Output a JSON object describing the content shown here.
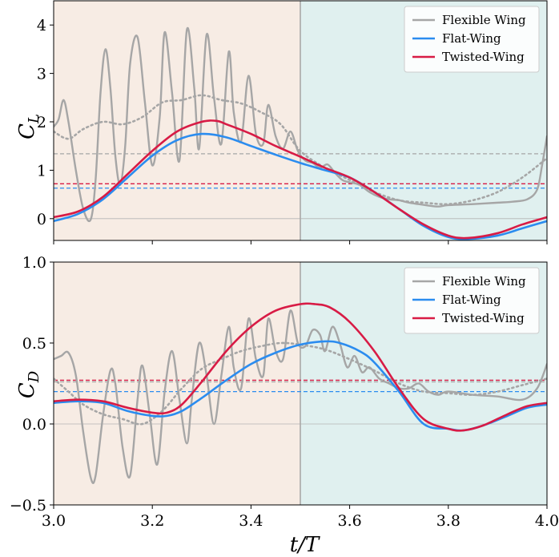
{
  "figure": {
    "xlabel": "t/T"
  },
  "colors": {
    "flexible": "#a6a6a6",
    "flat": "#2b8cef",
    "twisted": "#d81b45",
    "phase1_bg": "#f7ece4",
    "phase2_bg": "#e0f0ef",
    "divider": "#a8a8a8",
    "zero_line": "#b4b4b4"
  },
  "chart_data": [
    {
      "type": "line",
      "id": "top",
      "ylabel_main": "C",
      "ylabel_sub": "L",
      "xlim": [
        3.0,
        4.0
      ],
      "ylim": [
        -0.45,
        4.5
      ],
      "xticks": [
        3.0,
        3.2,
        3.4,
        3.6,
        3.8,
        4.0
      ],
      "yticks": [
        0,
        1,
        2,
        3,
        4
      ],
      "ytick_labels": [
        "0",
        "1",
        "2",
        "3",
        "4"
      ],
      "phase_split_x": 3.5,
      "legend": {
        "placement": "top-right",
        "entries": [
          "Flexible Wing",
          "Flat-Wing",
          "Twisted-Wing"
        ]
      },
      "series": [
        {
          "name": "Flexible Wing",
          "style": "solid",
          "x": [
            3.0,
            3.01,
            3.02,
            3.03,
            3.045,
            3.06,
            3.075,
            3.085,
            3.095,
            3.105,
            3.115,
            3.125,
            3.135,
            3.145,
            3.155,
            3.17,
            3.185,
            3.2,
            3.215,
            3.225,
            3.24,
            3.255,
            3.27,
            3.285,
            3.295,
            3.31,
            3.325,
            3.34,
            3.355,
            3.365,
            3.38,
            3.395,
            3.41,
            3.425,
            3.435,
            3.45,
            3.465,
            3.48,
            3.495,
            3.51,
            3.525,
            3.54,
            3.555,
            3.57,
            3.585,
            3.6,
            3.62,
            3.64,
            3.66,
            3.68,
            3.7,
            3.72,
            3.74,
            3.76,
            3.78,
            3.8,
            3.85,
            3.9,
            3.93,
            3.96,
            3.98,
            3.99,
            4.0
          ],
          "y": [
            1.9,
            2.05,
            2.45,
            2.0,
            1.0,
            0.2,
            -0.02,
            0.8,
            2.6,
            3.5,
            2.7,
            1.3,
            0.7,
            1.5,
            3.2,
            3.75,
            2.4,
            1.1,
            2.1,
            3.85,
            2.6,
            1.2,
            3.9,
            2.7,
            1.45,
            3.8,
            2.5,
            1.55,
            3.45,
            2.2,
            1.6,
            2.95,
            1.75,
            1.55,
            2.35,
            1.7,
            1.45,
            1.8,
            1.4,
            1.2,
            1.15,
            1.05,
            1.12,
            0.95,
            0.8,
            0.75,
            0.7,
            0.55,
            0.45,
            0.4,
            0.38,
            0.33,
            0.3,
            0.27,
            0.25,
            0.28,
            0.3,
            0.33,
            0.35,
            0.4,
            0.6,
            1.1,
            1.7
          ]
        },
        {
          "name": "Flexible Wing (smoothed)",
          "style": "dotted",
          "x": [
            3.0,
            3.03,
            3.06,
            3.1,
            3.14,
            3.18,
            3.22,
            3.26,
            3.3,
            3.34,
            3.38,
            3.42,
            3.46,
            3.5,
            3.55,
            3.6,
            3.65,
            3.7,
            3.75,
            3.8,
            3.85,
            3.9,
            3.95,
            4.0
          ],
          "y": [
            1.8,
            1.65,
            1.85,
            2.0,
            1.95,
            2.1,
            2.4,
            2.45,
            2.55,
            2.45,
            2.38,
            2.2,
            1.95,
            1.4,
            1.05,
            0.8,
            0.55,
            0.38,
            0.33,
            0.3,
            0.38,
            0.55,
            0.85,
            1.25
          ]
        },
        {
          "name": "Flat-Wing",
          "style": "solid",
          "x": [
            3.0,
            3.05,
            3.1,
            3.15,
            3.2,
            3.25,
            3.3,
            3.35,
            3.4,
            3.45,
            3.5,
            3.55,
            3.6,
            3.65,
            3.7,
            3.75,
            3.8,
            3.84,
            3.9,
            3.95,
            4.0
          ],
          "y": [
            -0.05,
            0.1,
            0.4,
            0.85,
            1.3,
            1.62,
            1.75,
            1.68,
            1.5,
            1.32,
            1.15,
            1.0,
            0.85,
            0.55,
            0.2,
            -0.15,
            -0.38,
            -0.42,
            -0.35,
            -0.2,
            -0.05
          ]
        },
        {
          "name": "Twisted-Wing",
          "style": "solid",
          "x": [
            3.0,
            3.05,
            3.1,
            3.15,
            3.2,
            3.25,
            3.3,
            3.33,
            3.35,
            3.4,
            3.45,
            3.5,
            3.55,
            3.6,
            3.65,
            3.7,
            3.75,
            3.8,
            3.84,
            3.9,
            3.95,
            4.0
          ],
          "y": [
            0.03,
            0.15,
            0.45,
            0.92,
            1.4,
            1.8,
            2.0,
            2.02,
            1.95,
            1.75,
            1.5,
            1.28,
            1.05,
            0.85,
            0.55,
            0.2,
            -0.12,
            -0.35,
            -0.4,
            -0.3,
            -0.12,
            0.03
          ]
        }
      ],
      "mean_lines": [
        {
          "name": "Flexible Wing mean",
          "value": 1.34
        },
        {
          "name": "Flat-Wing mean",
          "value": 0.63
        },
        {
          "name": "Twisted-Wing mean",
          "value": 0.72
        }
      ]
    },
    {
      "type": "line",
      "id": "bottom",
      "ylabel_main": "C",
      "ylabel_sub": "D",
      "xlim": [
        3.0,
        4.0
      ],
      "ylim": [
        -0.5,
        1.0
      ],
      "xticks": [
        3.0,
        3.2,
        3.4,
        3.6,
        3.8,
        4.0
      ],
      "xtick_labels": [
        "3.0",
        "3.2",
        "3.4",
        "3.6",
        "3.8",
        "4.0"
      ],
      "yticks": [
        -0.5,
        0.0,
        0.5,
        1.0
      ],
      "ytick_labels": [
        "−0.5",
        "0.0",
        "0.5",
        "1.0"
      ],
      "phase_split_x": 3.5,
      "legend": {
        "placement": "top-right",
        "entries": [
          "Flexible Wing",
          "Flat-Wing",
          "Twisted-Wing"
        ]
      },
      "series": [
        {
          "name": "Flexible Wing",
          "style": "solid",
          "x": [
            3.0,
            3.015,
            3.03,
            3.045,
            3.06,
            3.075,
            3.085,
            3.1,
            3.115,
            3.125,
            3.14,
            3.155,
            3.17,
            3.18,
            3.195,
            3.21,
            3.225,
            3.24,
            3.255,
            3.27,
            3.28,
            3.295,
            3.31,
            3.325,
            3.34,
            3.355,
            3.365,
            3.38,
            3.395,
            3.41,
            3.425,
            3.435,
            3.45,
            3.465,
            3.48,
            3.495,
            3.51,
            3.525,
            3.54,
            3.55,
            3.565,
            3.58,
            3.595,
            3.61,
            3.625,
            3.64,
            3.66,
            3.68,
            3.7,
            3.72,
            3.74,
            3.76,
            3.78,
            3.8,
            3.85,
            3.9,
            3.95,
            3.98,
            4.0
          ],
          "y": [
            0.4,
            0.42,
            0.44,
            0.3,
            -0.05,
            -0.33,
            -0.32,
            0.05,
            0.33,
            0.25,
            -0.15,
            -0.32,
            0.15,
            0.36,
            0.05,
            -0.25,
            0.2,
            0.45,
            0.15,
            -0.12,
            0.15,
            0.5,
            0.3,
            0.0,
            0.3,
            0.6,
            0.35,
            0.22,
            0.65,
            0.4,
            0.3,
            0.65,
            0.45,
            0.4,
            0.7,
            0.5,
            0.48,
            0.58,
            0.55,
            0.45,
            0.6,
            0.5,
            0.35,
            0.42,
            0.32,
            0.35,
            0.28,
            0.25,
            0.22,
            0.22,
            0.25,
            0.2,
            0.18,
            0.2,
            0.18,
            0.17,
            0.15,
            0.22,
            0.37
          ]
        },
        {
          "name": "Flexible Wing (smoothed)",
          "style": "dotted",
          "x": [
            3.0,
            3.03,
            3.06,
            3.1,
            3.14,
            3.18,
            3.22,
            3.26,
            3.3,
            3.34,
            3.38,
            3.42,
            3.46,
            3.5,
            3.55,
            3.6,
            3.65,
            3.7,
            3.75,
            3.8,
            3.85,
            3.9,
            3.95,
            4.0
          ],
          "y": [
            0.28,
            0.2,
            0.12,
            0.06,
            0.03,
            0.0,
            0.08,
            0.22,
            0.34,
            0.4,
            0.45,
            0.48,
            0.5,
            0.49,
            0.46,
            0.4,
            0.33,
            0.25,
            0.2,
            0.19,
            0.18,
            0.2,
            0.24,
            0.28
          ]
        },
        {
          "name": "Flat-Wing",
          "style": "solid",
          "x": [
            3.0,
            3.05,
            3.1,
            3.15,
            3.2,
            3.23,
            3.26,
            3.3,
            3.35,
            3.4,
            3.45,
            3.5,
            3.55,
            3.58,
            3.62,
            3.65,
            3.7,
            3.75,
            3.8,
            3.83,
            3.87,
            3.92,
            3.96,
            4.0
          ],
          "y": [
            0.13,
            0.14,
            0.13,
            0.08,
            0.05,
            0.05,
            0.08,
            0.16,
            0.27,
            0.37,
            0.44,
            0.49,
            0.51,
            0.5,
            0.45,
            0.38,
            0.2,
            0.0,
            -0.03,
            -0.04,
            -0.01,
            0.05,
            0.1,
            0.12
          ]
        },
        {
          "name": "Twisted-Wing",
          "style": "solid",
          "x": [
            3.0,
            3.05,
            3.1,
            3.15,
            3.2,
            3.23,
            3.26,
            3.3,
            3.35,
            3.4,
            3.45,
            3.5,
            3.53,
            3.56,
            3.6,
            3.65,
            3.7,
            3.75,
            3.8,
            3.83,
            3.87,
            3.92,
            3.96,
            4.0
          ],
          "y": [
            0.14,
            0.15,
            0.14,
            0.1,
            0.07,
            0.07,
            0.12,
            0.26,
            0.45,
            0.6,
            0.7,
            0.74,
            0.74,
            0.72,
            0.63,
            0.45,
            0.22,
            0.03,
            -0.03,
            -0.04,
            -0.01,
            0.06,
            0.11,
            0.13
          ]
        }
      ],
      "mean_lines": [
        {
          "name": "Flexible Wing mean",
          "value": 0.26
        },
        {
          "name": "Flat-Wing mean",
          "value": 0.2
        },
        {
          "name": "Twisted-Wing mean",
          "value": 0.27
        }
      ]
    }
  ]
}
